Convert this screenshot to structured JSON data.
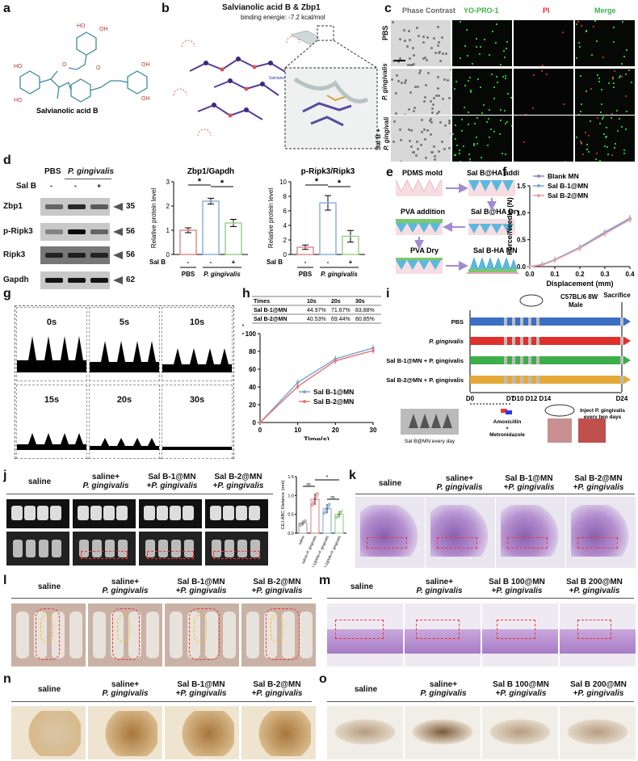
{
  "labels": {
    "a": "a",
    "b": "b",
    "c": "c",
    "d": "d",
    "e": "e",
    "f": "f",
    "g": "g",
    "h": "h",
    "i": "i",
    "j": "j",
    "k": "k",
    "l": "l",
    "m": "m",
    "n": "n",
    "o": "o"
  },
  "panel_a": {
    "name": "Salvianolic acid B"
  },
  "panel_b": {
    "title": "Salvianolic acid B & Zbp1",
    "subtitle": "binding energie: -7.2 kcal/mol",
    "ligand_label": "Salvianolic acid B"
  },
  "panel_c": {
    "cols": [
      "Phase Contrast",
      "YO-PRO-1",
      "PI",
      "Merge"
    ],
    "rows": [
      "PBS",
      "P. gingivalis",
      "Sal B +",
      "P. gingivali"
    ]
  },
  "panel_d": {
    "groups": [
      "PBS",
      "P. gingivalis"
    ],
    "salb_label": "Sal B",
    "salb_marks": [
      "-",
      "-",
      "+"
    ],
    "blots": [
      {
        "name": "Zbp1",
        "kda": "35"
      },
      {
        "name": "p-Ripk3",
        "kda": "56"
      },
      {
        "name": "Ripk3",
        "kda": "56"
      },
      {
        "name": "Gapdh",
        "kda": "62"
      }
    ]
  },
  "chart_data": [
    {
      "type": "bar",
      "title": "Zbp1/Gapdh",
      "ylabel": "Relative protein level",
      "ylim": [
        0,
        3
      ],
      "yticks": [
        "0",
        "1",
        "2",
        "3"
      ],
      "categories": [
        "PBS",
        "P. gingivalis",
        "P. gingivalis + Sal B"
      ],
      "values": [
        1.0,
        2.2,
        1.3
      ],
      "errors": [
        0.1,
        0.12,
        0.15
      ],
      "salb": [
        "-",
        "-",
        "+"
      ],
      "sig": [
        "*",
        "*"
      ],
      "colors": [
        "#e07b7b",
        "#7ba7d6",
        "#8fc97b"
      ]
    },
    {
      "type": "bar",
      "title": "p-Ripk3/Ripk3",
      "ylabel": "Relative protein level",
      "ylim": [
        0,
        10
      ],
      "yticks": [
        "0",
        "2",
        "4",
        "6",
        "8",
        "10"
      ],
      "categories": [
        "PBS",
        "P. gingivalis",
        "P. gingivalis + Sal B"
      ],
      "values": [
        1.0,
        7.1,
        2.5
      ],
      "errors": [
        0.3,
        1.0,
        0.8
      ],
      "salb": [
        "-",
        "-",
        "+"
      ],
      "sig": [
        "*",
        "*"
      ],
      "colors": [
        "#e07b7b",
        "#7ba7d6",
        "#8fc97b"
      ]
    },
    {
      "type": "line",
      "title": "",
      "xlabel": "Displacement (mm)",
      "ylabel": "Force/Needle (N)",
      "xlim": [
        0,
        0.4
      ],
      "ylim": [
        0,
        1.5
      ],
      "xticks": [
        "0.0",
        "0.1",
        "0.2",
        "0.3",
        "0.4"
      ],
      "yticks": [
        "0.0",
        "0.5",
        "1.0",
        "1.5"
      ],
      "series": [
        {
          "name": "Blank MN",
          "color": "#8e86c2",
          "x": [
            0,
            0.05,
            0.1,
            0.2,
            0.3,
            0.4
          ],
          "y": [
            0,
            0.03,
            0.12,
            0.35,
            0.62,
            0.88
          ]
        },
        {
          "name": "Sal B-1@MN",
          "color": "#7ba7d6",
          "x": [
            0,
            0.05,
            0.1,
            0.2,
            0.3,
            0.4
          ],
          "y": [
            0,
            0.04,
            0.13,
            0.36,
            0.64,
            0.9
          ]
        },
        {
          "name": "Sal B-2@MN",
          "color": "#e8a0a0",
          "x": [
            0,
            0.05,
            0.1,
            0.2,
            0.3,
            0.4
          ],
          "y": [
            0,
            0.03,
            0.12,
            0.34,
            0.61,
            0.87
          ]
        }
      ]
    },
    {
      "type": "line",
      "title": "",
      "xlabel": "Time(s)",
      "ylabel": "Cumulative release of Sal B (%)",
      "xlim": [
        0,
        30
      ],
      "ylim": [
        0,
        100
      ],
      "xticks": [
        "0",
        "10",
        "20",
        "30"
      ],
      "yticks": [
        "0",
        "20",
        "40",
        "60",
        "80",
        "100"
      ],
      "series": [
        {
          "name": "Sal B-1@MN",
          "color": "#7ba7d6",
          "x": [
            0,
            10,
            20,
            30
          ],
          "y": [
            0,
            44.97,
            71.67,
            83.88
          ]
        },
        {
          "name": "Sal B-2@MN",
          "color": "#e07b7b",
          "x": [
            0,
            10,
            20,
            30
          ],
          "y": [
            0,
            40.53,
            69.44,
            80.85
          ]
        }
      ],
      "table": {
        "header": [
          "Times",
          "10s",
          "20s",
          "30s"
        ],
        "rows": [
          [
            "Sal B-1@MN",
            "44.97%",
            "71.67%",
            "83.88%"
          ],
          [
            "Sal B-2@MN",
            "40.53%",
            "69.44%",
            "80.85%"
          ]
        ]
      }
    },
    {
      "type": "scatter",
      "title": "",
      "ylabel": "CEJ-ABC Distance (mm)",
      "ylim": [
        0,
        1.5
      ],
      "yticks": [
        "0.0",
        "0.5",
        "1.0",
        "1.5"
      ],
      "categories": [
        "saline",
        "saline+P. gingivalis",
        "Sal B-1@MN+P. gingivalis",
        "Sal B-2@MN+P. gingivalis"
      ],
      "values": [
        0.27,
        0.9,
        0.65,
        0.5
      ],
      "errors": [
        0.06,
        0.15,
        0.12,
        0.08
      ],
      "sig": [
        "*",
        "ns",
        "ns"
      ],
      "colors": [
        "#999999",
        "#e07b7b",
        "#7ba7d6",
        "#8fc97b"
      ]
    }
  ],
  "panel_e": {
    "steps": [
      "PDMS mold",
      "Sal B@HA addition",
      "PVA addition",
      "Sal B@HA Dry",
      "PVA Dry",
      "Sal B-HA MN"
    ]
  },
  "panel_g": {
    "times": [
      "0s",
      "5s",
      "10s",
      "15s",
      "20s",
      "30s"
    ]
  },
  "panel_i": {
    "mouse": "C57BL/6  8W",
    "sex": "Male",
    "sacrifice": "Sacrifice",
    "groups": [
      {
        "name": "PBS",
        "color": "#3b6fc4"
      },
      {
        "name": "P. gingivalis",
        "color": "#e0302c"
      },
      {
        "name": "Sal B-1@MN + P. gingivalis",
        "color": "#3dae4a"
      },
      {
        "name": "Sal B-2@MN + P. gingivalis",
        "color": "#e5a93a"
      }
    ],
    "days": [
      "D0",
      "D7",
      "D10 D12 D14",
      "D24"
    ],
    "mn_caption": "Sal B@MN every day",
    "abx": "Amoxicillin",
    "plus": "+",
    "abx2": "Metronidazole",
    "inject": "Inject P. gingivalis",
    "inject2": "every two days"
  },
  "histo_groups_1": [
    "saline",
    "saline+",
    "P. gingivalis",
    "Sal B-1@MN",
    "+P. gingivalis",
    "Sal B-2@MN",
    "+P. gingivalis"
  ],
  "histo_groups_2": [
    "saline",
    "saline+",
    "P. gingivalis",
    "Sal B 100@MN",
    "+P. gingivalis",
    "Sal B 200@MN",
    "+P. gingivalis"
  ]
}
